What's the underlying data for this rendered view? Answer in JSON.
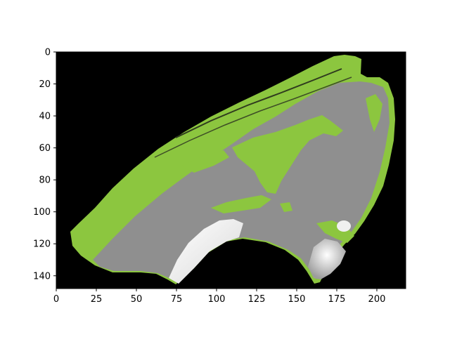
{
  "chart_data": {
    "type": "heatmap",
    "title": "",
    "xlabel": "",
    "ylabel": "",
    "xlim": [
      0,
      218
    ],
    "ylim": [
      148,
      0
    ],
    "xticks": [
      "0",
      "25",
      "50",
      "75",
      "100",
      "125",
      "150",
      "175",
      "200"
    ],
    "yticks": [
      "0",
      "20",
      "40",
      "60",
      "80",
      "100",
      "120",
      "140"
    ],
    "colors": {
      "background": "#000000",
      "tissue": "#8f8f8f",
      "overlay": "#8cc63f",
      "bright": "#f4f4f4"
    }
  }
}
